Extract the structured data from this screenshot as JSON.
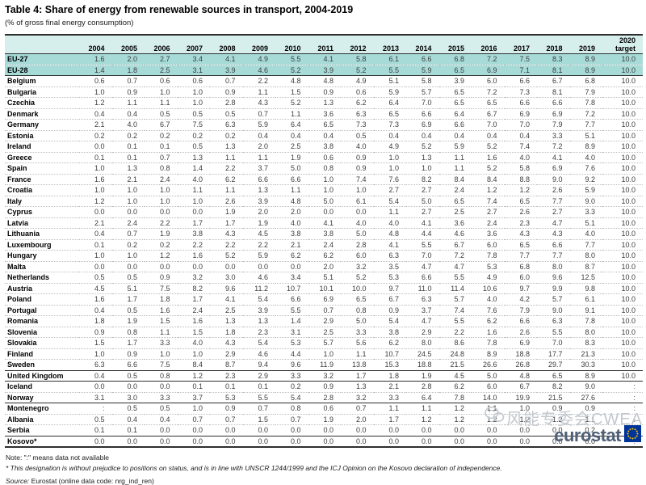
{
  "title": "Table 4: Share of energy from renewable sources in transport, 2004-2019",
  "subtitle": "(% of gross final energy consumption)",
  "table": {
    "year_columns": [
      "2004",
      "2005",
      "2006",
      "2007",
      "2008",
      "2009",
      "2010",
      "2011",
      "2012",
      "2013",
      "2014",
      "2015",
      "2016",
      "2017",
      "2018",
      "2019"
    ],
    "target_column": "2020 target",
    "rows": [
      {
        "name": "EU-27",
        "section": "eu",
        "values": [
          "1.6",
          "2.0",
          "2.7",
          "3.4",
          "4.1",
          "4.9",
          "5.5",
          "4.1",
          "5.8",
          "6.1",
          "6.6",
          "6.8",
          "7.2",
          "7.5",
          "8.3",
          "8.9"
        ],
        "target": "10.0"
      },
      {
        "name": "EU-28",
        "section": "eu",
        "values": [
          "1.4",
          "1.8",
          "2.5",
          "3.1",
          "3.9",
          "4.6",
          "5.2",
          "3.9",
          "5.2",
          "5.5",
          "5.9",
          "6.5",
          "6.9",
          "7.1",
          "8.1",
          "8.9"
        ],
        "target": "10.0"
      },
      {
        "name": "Belgium",
        "section": "members",
        "values": [
          "0.6",
          "0.7",
          "0.6",
          "0.6",
          "0.7",
          "2.2",
          "4.8",
          "4.8",
          "4.9",
          "5.1",
          "5.8",
          "3.9",
          "6.0",
          "6.6",
          "6.7",
          "6.8"
        ],
        "target": "10.0"
      },
      {
        "name": "Bulgaria",
        "section": "members",
        "values": [
          "1.0",
          "0.9",
          "1.0",
          "1.0",
          "0.9",
          "1.1",
          "1.5",
          "0.9",
          "0.6",
          "5.9",
          "5.7",
          "6.5",
          "7.2",
          "7.3",
          "8.1",
          "7.9"
        ],
        "target": "10.0"
      },
      {
        "name": "Czechia",
        "section": "members",
        "values": [
          "1.2",
          "1.1",
          "1.1",
          "1.0",
          "2.8",
          "4.3",
          "5.2",
          "1.3",
          "6.2",
          "6.4",
          "7.0",
          "6.5",
          "6.5",
          "6.6",
          "6.6",
          "7.8"
        ],
        "target": "10.0"
      },
      {
        "name": "Denmark",
        "section": "members",
        "values": [
          "0.4",
          "0.4",
          "0.5",
          "0.5",
          "0.5",
          "0.7",
          "1.1",
          "3.6",
          "6.3",
          "6.5",
          "6.6",
          "6.4",
          "6.7",
          "6.9",
          "6.9",
          "7.2"
        ],
        "target": "10.0"
      },
      {
        "name": "Germany",
        "section": "members",
        "values": [
          "2.1",
          "4.0",
          "6.7",
          "7.5",
          "6.3",
          "5.9",
          "6.4",
          "6.5",
          "7.3",
          "7.3",
          "6.9",
          "6.6",
          "7.0",
          "7.0",
          "7.9",
          "7.7"
        ],
        "target": "10.0"
      },
      {
        "name": "Estonia",
        "section": "members",
        "values": [
          "0.2",
          "0.2",
          "0.2",
          "0.2",
          "0.2",
          "0.4",
          "0.4",
          "0.4",
          "0.5",
          "0.4",
          "0.4",
          "0.4",
          "0.4",
          "0.4",
          "3.3",
          "5.1"
        ],
        "target": "10.0"
      },
      {
        "name": "Ireland",
        "section": "members",
        "values": [
          "0.0",
          "0.1",
          "0.1",
          "0.5",
          "1.3",
          "2.0",
          "2.5",
          "3.8",
          "4.0",
          "4.9",
          "5.2",
          "5.9",
          "5.2",
          "7.4",
          "7.2",
          "8.9"
        ],
        "target": "10.0"
      },
      {
        "name": "Greece",
        "section": "members",
        "values": [
          "0.1",
          "0.1",
          "0.7",
          "1.3",
          "1.1",
          "1.1",
          "1.9",
          "0.6",
          "0.9",
          "1.0",
          "1.3",
          "1.1",
          "1.6",
          "4.0",
          "4.1",
          "4.0"
        ],
        "target": "10.0"
      },
      {
        "name": "Spain",
        "section": "members",
        "values": [
          "1.0",
          "1.3",
          "0.8",
          "1.4",
          "2.2",
          "3.7",
          "5.0",
          "0.8",
          "0.9",
          "1.0",
          "1.0",
          "1.1",
          "5.2",
          "5.8",
          "6.9",
          "7.6"
        ],
        "target": "10.0"
      },
      {
        "name": "France",
        "section": "members",
        "values": [
          "1.6",
          "2.1",
          "2.4",
          "4.0",
          "6.2",
          "6.6",
          "6.6",
          "1.0",
          "7.4",
          "7.6",
          "8.2",
          "8.4",
          "8.4",
          "8.8",
          "9.0",
          "9.2"
        ],
        "target": "10.0"
      },
      {
        "name": "Croatia",
        "section": "members",
        "values": [
          "1.0",
          "1.0",
          "1.0",
          "1.1",
          "1.1",
          "1.3",
          "1.1",
          "1.0",
          "1.0",
          "2.7",
          "2.7",
          "2.4",
          "1.2",
          "1.2",
          "2.6",
          "5.9"
        ],
        "target": "10.0"
      },
      {
        "name": "Italy",
        "section": "members",
        "values": [
          "1.2",
          "1.0",
          "1.0",
          "1.0",
          "2.6",
          "3.9",
          "4.8",
          "5.0",
          "6.1",
          "5.4",
          "5.0",
          "6.5",
          "7.4",
          "6.5",
          "7.7",
          "9.0"
        ],
        "target": "10.0"
      },
      {
        "name": "Cyprus",
        "section": "members",
        "values": [
          "0.0",
          "0.0",
          "0.0",
          "0.0",
          "1.9",
          "2.0",
          "2.0",
          "0.0",
          "0.0",
          "1.1",
          "2.7",
          "2.5",
          "2.7",
          "2.6",
          "2.7",
          "3.3"
        ],
        "target": "10.0"
      },
      {
        "name": "Latvia",
        "section": "members",
        "values": [
          "2.1",
          "2.4",
          "2.2",
          "1.7",
          "1.7",
          "1.9",
          "4.0",
          "4.1",
          "4.0",
          "4.0",
          "4.1",
          "3.6",
          "2.4",
          "2.3",
          "4.7",
          "5.1"
        ],
        "target": "10.0"
      },
      {
        "name": "Lithuania",
        "section": "members",
        "values": [
          "0.4",
          "0.7",
          "1.9",
          "3.8",
          "4.3",
          "4.5",
          "3.8",
          "3.8",
          "5.0",
          "4.8",
          "4.4",
          "4.6",
          "3.6",
          "4.3",
          "4.3",
          "4.0"
        ],
        "target": "10.0"
      },
      {
        "name": "Luxembourg",
        "section": "members",
        "values": [
          "0.1",
          "0.2",
          "0.2",
          "2.2",
          "2.2",
          "2.2",
          "2.1",
          "2.4",
          "2.8",
          "4.1",
          "5.5",
          "6.7",
          "6.0",
          "6.5",
          "6.6",
          "7.7"
        ],
        "target": "10.0"
      },
      {
        "name": "Hungary",
        "section": "members",
        "values": [
          "1.0",
          "1.0",
          "1.2",
          "1.6",
          "5.2",
          "5.9",
          "6.2",
          "6.2",
          "6.0",
          "6.3",
          "7.0",
          "7.2",
          "7.8",
          "7.7",
          "7.7",
          "8.0"
        ],
        "target": "10.0"
      },
      {
        "name": "Malta",
        "section": "members",
        "values": [
          "0.0",
          "0.0",
          "0.0",
          "0.0",
          "0.0",
          "0.0",
          "0.0",
          "2.0",
          "3.2",
          "3.5",
          "4.7",
          "4.7",
          "5.3",
          "6.8",
          "8.0",
          "8.7"
        ],
        "target": "10.0"
      },
      {
        "name": "Netherlands",
        "section": "members",
        "values": [
          "0.5",
          "0.5",
          "0.9",
          "3.2",
          "3.0",
          "4.6",
          "3.4",
          "5.1",
          "5.2",
          "5.3",
          "6.6",
          "5.5",
          "4.9",
          "6.0",
          "9.6",
          "12.5"
        ],
        "target": "10.0"
      },
      {
        "name": "Austria",
        "section": "members",
        "values": [
          "4.5",
          "5.1",
          "7.5",
          "8.2",
          "9.6",
          "11.2",
          "10.7",
          "10.1",
          "10.0",
          "9.7",
          "11.0",
          "11.4",
          "10.6",
          "9.7",
          "9.9",
          "9.8"
        ],
        "target": "10.0"
      },
      {
        "name": "Poland",
        "section": "members",
        "values": [
          "1.6",
          "1.7",
          "1.8",
          "1.7",
          "4.1",
          "5.4",
          "6.6",
          "6.9",
          "6.5",
          "6.7",
          "6.3",
          "5.7",
          "4.0",
          "4.2",
          "5.7",
          "6.1"
        ],
        "target": "10.0"
      },
      {
        "name": "Portugal",
        "section": "members",
        "values": [
          "0.4",
          "0.5",
          "1.6",
          "2.4",
          "2.5",
          "3.9",
          "5.5",
          "0.7",
          "0.8",
          "0.9",
          "3.7",
          "7.4",
          "7.6",
          "7.9",
          "9.0",
          "9.1"
        ],
        "target": "10.0"
      },
      {
        "name": "Romania",
        "section": "members",
        "values": [
          "1.8",
          "1.9",
          "1.5",
          "1.6",
          "1.3",
          "1.3",
          "1.4",
          "2.9",
          "5.0",
          "5.4",
          "4.7",
          "5.5",
          "6.2",
          "6.6",
          "6.3",
          "7.8"
        ],
        "target": "10.0"
      },
      {
        "name": "Slovenia",
        "section": "members",
        "values": [
          "0.9",
          "0.8",
          "1.1",
          "1.5",
          "1.8",
          "2.3",
          "3.1",
          "2.5",
          "3.3",
          "3.8",
          "2.9",
          "2.2",
          "1.6",
          "2.6",
          "5.5",
          "8.0"
        ],
        "target": "10.0"
      },
      {
        "name": "Slovakia",
        "section": "members",
        "values": [
          "1.5",
          "1.7",
          "3.3",
          "4.0",
          "4.3",
          "5.4",
          "5.3",
          "5.7",
          "5.6",
          "6.2",
          "8.0",
          "8.6",
          "7.8",
          "6.9",
          "7.0",
          "8.3"
        ],
        "target": "10.0"
      },
      {
        "name": "Finland",
        "section": "members",
        "values": [
          "1.0",
          "0.9",
          "1.0",
          "1.0",
          "2.9",
          "4.6",
          "4.4",
          "1.0",
          "1.1",
          "10.7",
          "24.5",
          "24.8",
          "8.9",
          "18.8",
          "17.7",
          "21.3"
        ],
        "target": "10.0"
      },
      {
        "name": "Sweden",
        "section": "members",
        "values": [
          "6.3",
          "6.6",
          "7.5",
          "8.4",
          "8.7",
          "9.4",
          "9.6",
          "11.9",
          "13.8",
          "15.3",
          "18.8",
          "21.5",
          "26.6",
          "26.8",
          "29.7",
          "30.3"
        ],
        "target": "10.0"
      },
      {
        "name": "United Kingdom",
        "section": "uk",
        "values": [
          "0.4",
          "0.5",
          "0.8",
          "1.2",
          "2.3",
          "2.9",
          "3.3",
          "3.2",
          "1.7",
          "1.8",
          "1.9",
          "4.5",
          "5.0",
          "4.8",
          "6.5",
          "8.9"
        ],
        "target": "10.0"
      },
      {
        "name": "Iceland",
        "section": "efta",
        "values": [
          "0.0",
          "0.0",
          "0.0",
          "0.1",
          "0.1",
          "0.1",
          "0.2",
          "0.9",
          "1.3",
          "2.1",
          "2.8",
          "6.2",
          "6.0",
          "6.7",
          "8.2",
          "9.0"
        ],
        "target": ":"
      },
      {
        "name": "Norway",
        "section": "efta",
        "values": [
          "3.1",
          "3.0",
          "3.3",
          "3.7",
          "5.3",
          "5.5",
          "5.4",
          "2.8",
          "3.2",
          "3.3",
          "6.4",
          "7.8",
          "14.0",
          "19.9",
          "21.5",
          "27.6"
        ],
        "target": ":"
      },
      {
        "name": "Montenegro",
        "section": "candidates",
        "values": [
          ":",
          "0.5",
          "0.5",
          "1.0",
          "0.9",
          "0.7",
          "0.8",
          "0.6",
          "0.7",
          "1.1",
          "1.1",
          "1.2",
          "1.1",
          "1.0",
          "0.9",
          "0.9"
        ],
        "target": ":"
      },
      {
        "name": "Albania",
        "section": "candidates",
        "values": [
          "0.5",
          "0.4",
          "0.4",
          "0.7",
          "0.7",
          "1.5",
          "0.7",
          "1.9",
          "2.0",
          "1.7",
          "1.2",
          "1.2",
          "1.2",
          "1.2",
          "1.2",
          "1.1"
        ],
        "target": ":"
      },
      {
        "name": "Serbia",
        "section": "candidates",
        "values": [
          "0.1",
          "0.1",
          "0.0",
          "0.0",
          "0.0",
          "0.0",
          "0.0",
          "0.0",
          "0.0",
          "0.0",
          "0.0",
          "0.0",
          "0.0",
          "0.0",
          "0.0",
          "0.2"
        ],
        "target": ":"
      },
      {
        "name": "Kosovo*",
        "section": "kosovo",
        "values": [
          "0.0",
          "0.0",
          "0.0",
          "0.0",
          "0.0",
          "0.0",
          "0.0",
          "0.0",
          "0.0",
          "0.0",
          "0.0",
          "0.0",
          "0.0",
          "0.0",
          "0.0",
          "0.0"
        ],
        "target": ":"
      }
    ]
  },
  "footer": {
    "note": "Note: \":\" means data not available",
    "footnote": "* This designation is without prejudice to positions on status, and is in line with UNSCR 1244/1999 and the ICJ Opinion on the Kosovo declaration of independence.",
    "source_label": "Source:",
    "source_text": " Eurostat (online data code: nrg_ind_ren)"
  },
  "watermark": {
    "text": "风能专委会CWEA",
    "icon": "wechat-icon"
  },
  "logo": {
    "text": "eurostat",
    "icon": "eu-flag-icon"
  },
  "colors": {
    "header_bg": "#d6eeec",
    "eu_row_bg": "#a7dbd8",
    "eu_flag_blue": "#003399",
    "star_yellow": "#ffcc00",
    "eurostat_text": "#4e5f76",
    "watermark_gray": "#c3c8cd"
  }
}
